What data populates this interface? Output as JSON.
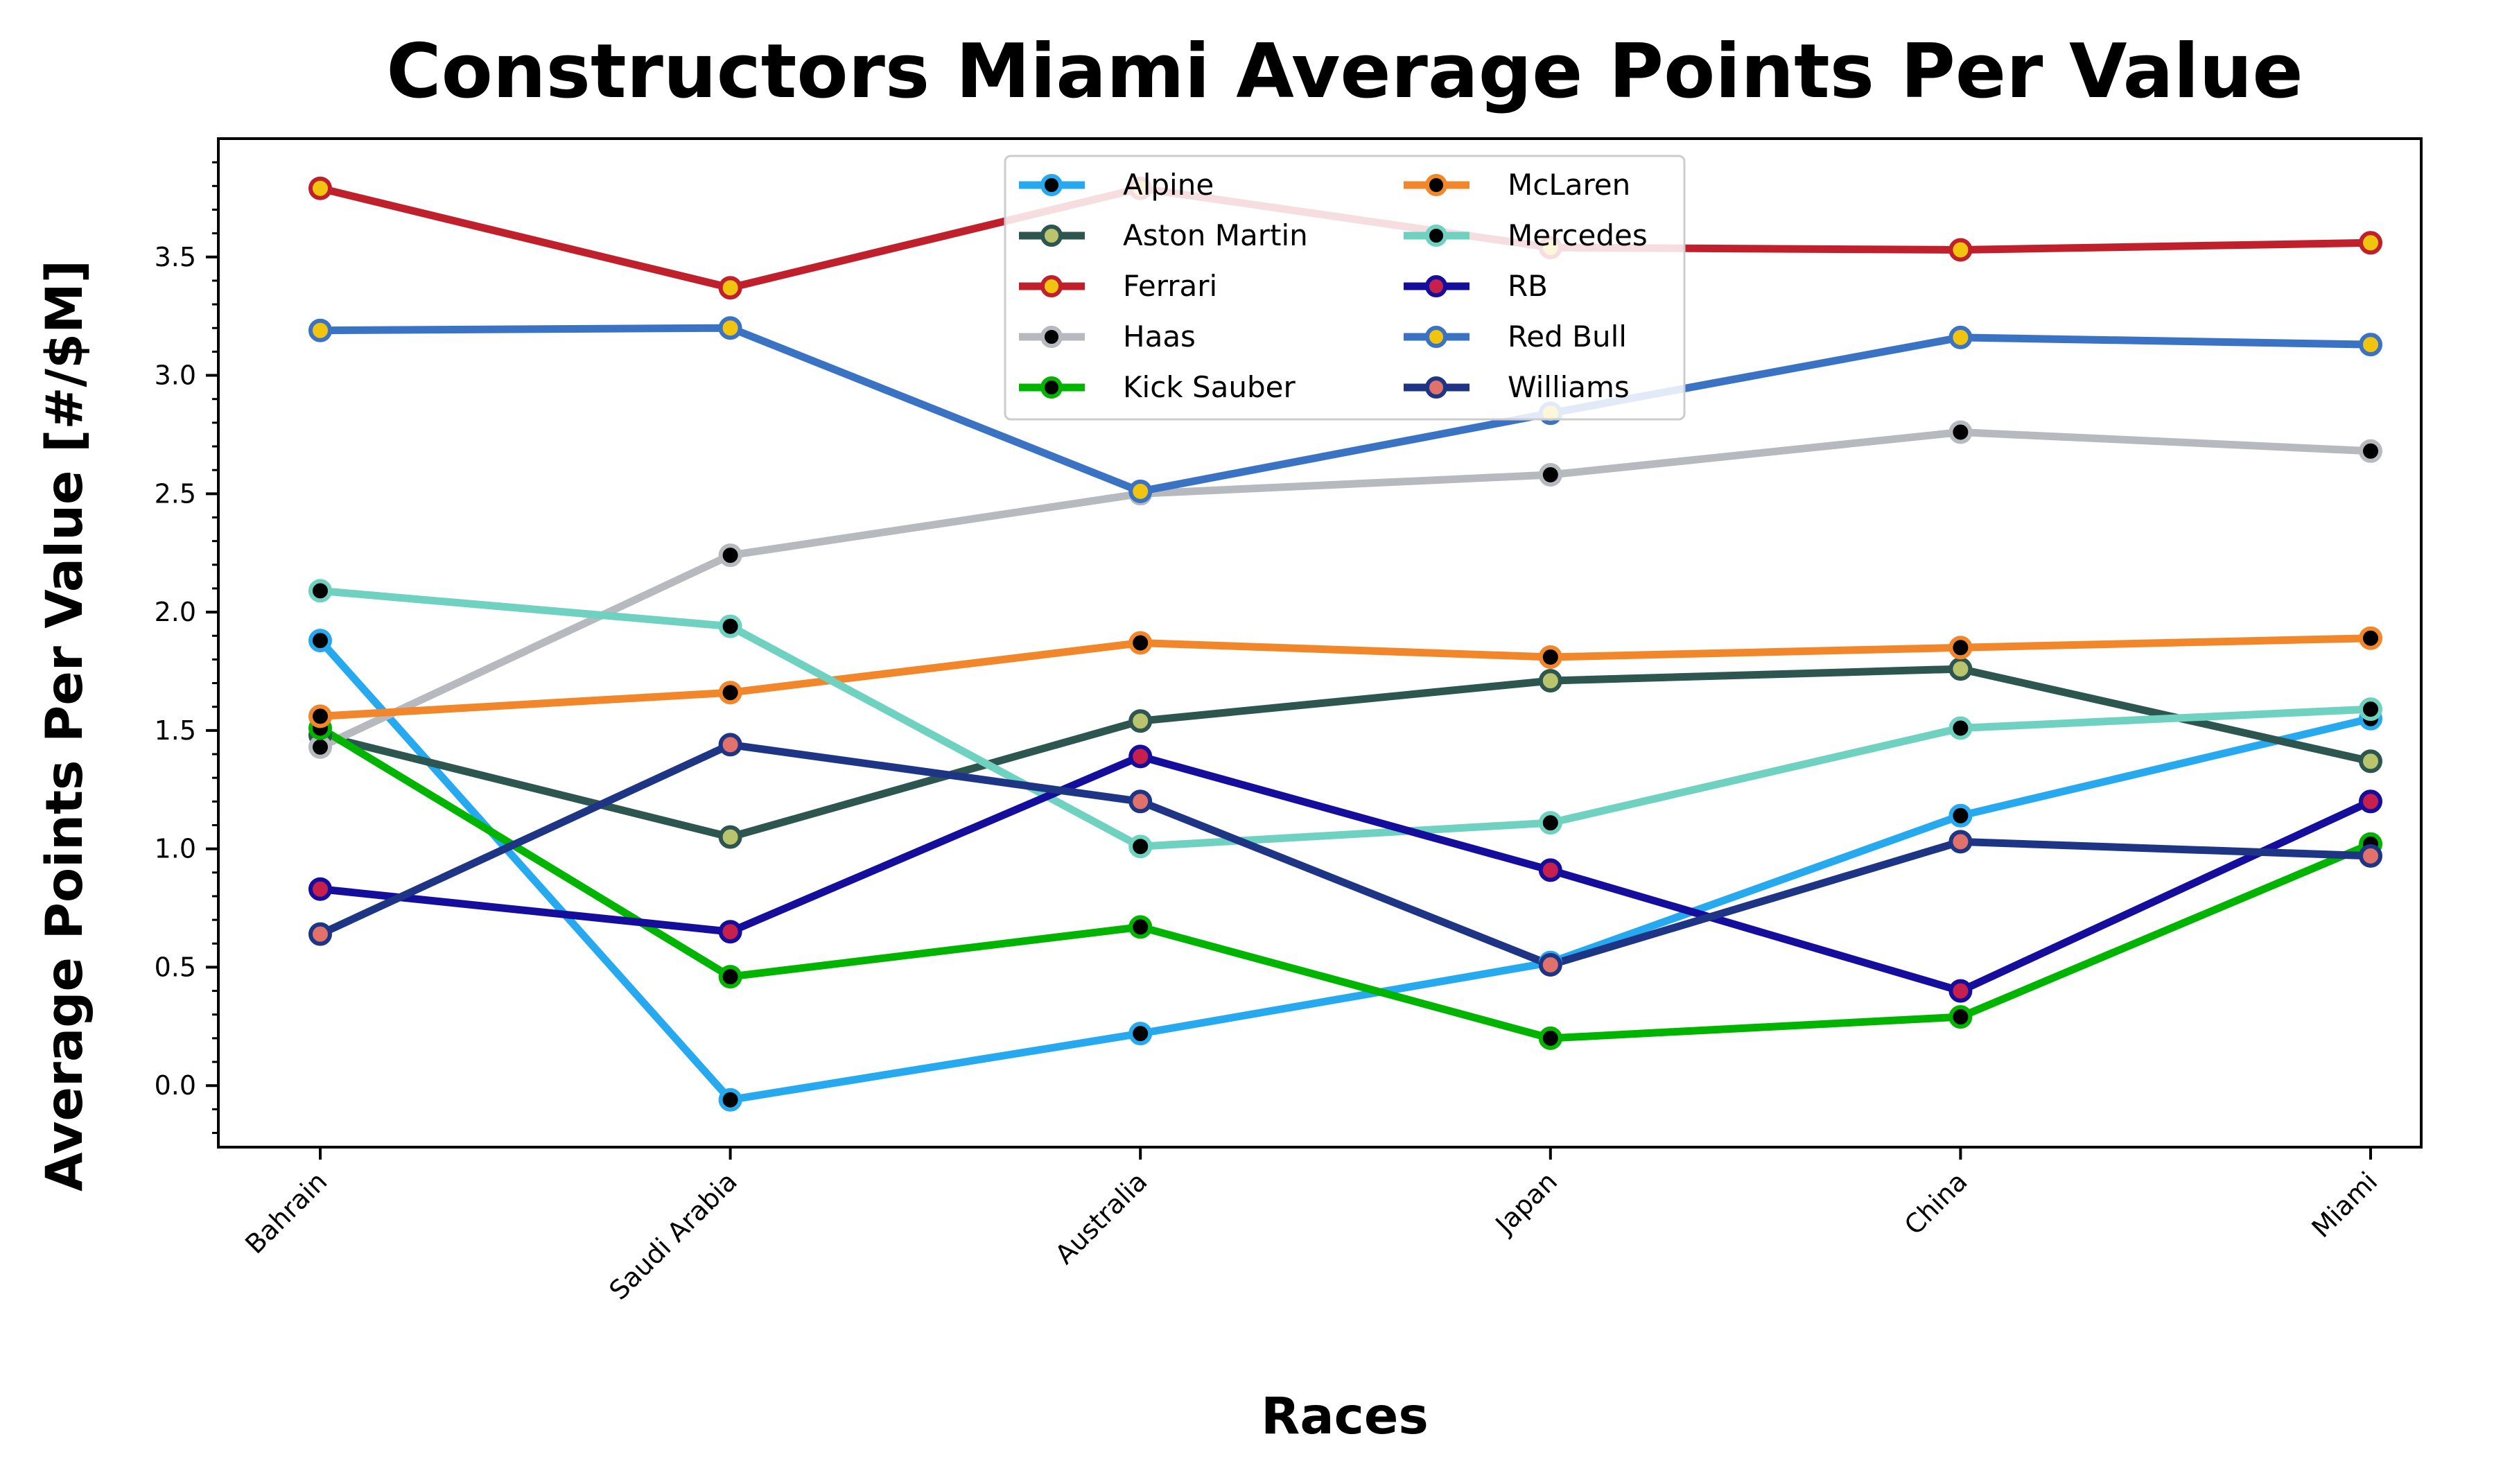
{
  "chart_data": {
    "type": "line",
    "title": "Constructors Miami Average Points Per Value",
    "xlabel": "Races",
    "ylabel": "Average Points Per Value [#/$M]",
    "categories": [
      "Bahrain",
      "Saudi Arabia",
      "Australia",
      "Japan",
      "China",
      "Miami"
    ],
    "ylim": [
      -0.26,
      4.0
    ],
    "yticks": [
      "0.0",
      "0.5",
      "1.0",
      "1.5",
      "2.0",
      "2.5",
      "3.0",
      "3.5"
    ],
    "grid": false,
    "legend_position": "top-center",
    "series": [
      {
        "name": "Alpine",
        "color": "#27a9ef",
        "marker_color": "#000000",
        "values": [
          1.88,
          -0.06,
          0.22,
          0.52,
          1.14,
          1.55
        ]
      },
      {
        "name": "Aston Martin",
        "color": "#2e5650",
        "marker_color": "#b9c46c",
        "values": [
          1.48,
          1.05,
          1.54,
          1.71,
          1.76,
          1.37
        ]
      },
      {
        "name": "Ferrari",
        "color": "#c0202c",
        "marker_color": "#f1c40f",
        "values": [
          3.79,
          3.37,
          3.79,
          3.54,
          3.53,
          3.56
        ]
      },
      {
        "name": "Haas",
        "color": "#b6b9bd",
        "marker_color": "#000000",
        "values": [
          1.43,
          2.24,
          2.5,
          2.58,
          2.76,
          2.68
        ]
      },
      {
        "name": "Kick Sauber",
        "color": "#00b400",
        "marker_color": "#000000",
        "values": [
          1.51,
          0.46,
          0.67,
          0.2,
          0.29,
          1.02
        ]
      },
      {
        "name": "McLaren",
        "color": "#f2862a",
        "marker_color": "#000000",
        "values": [
          1.56,
          1.66,
          1.87,
          1.81,
          1.85,
          1.89
        ]
      },
      {
        "name": "Mercedes",
        "color": "#6fd1bf",
        "marker_color": "#000000",
        "values": [
          2.09,
          1.94,
          1.01,
          1.11,
          1.51,
          1.59
        ]
      },
      {
        "name": "RB",
        "color": "#150e9c",
        "marker_color": "#c7204d",
        "values": [
          0.83,
          0.65,
          1.39,
          0.91,
          0.4,
          1.2
        ]
      },
      {
        "name": "Red Bull",
        "color": "#3a72c4",
        "marker_color": "#f1c40f",
        "values": [
          3.19,
          3.2,
          2.51,
          2.84,
          3.16,
          3.13
        ]
      },
      {
        "name": "Williams",
        "color": "#1e3585",
        "marker_color": "#e0716b",
        "values": [
          0.64,
          1.44,
          1.2,
          0.51,
          1.03,
          0.97
        ]
      }
    ]
  }
}
